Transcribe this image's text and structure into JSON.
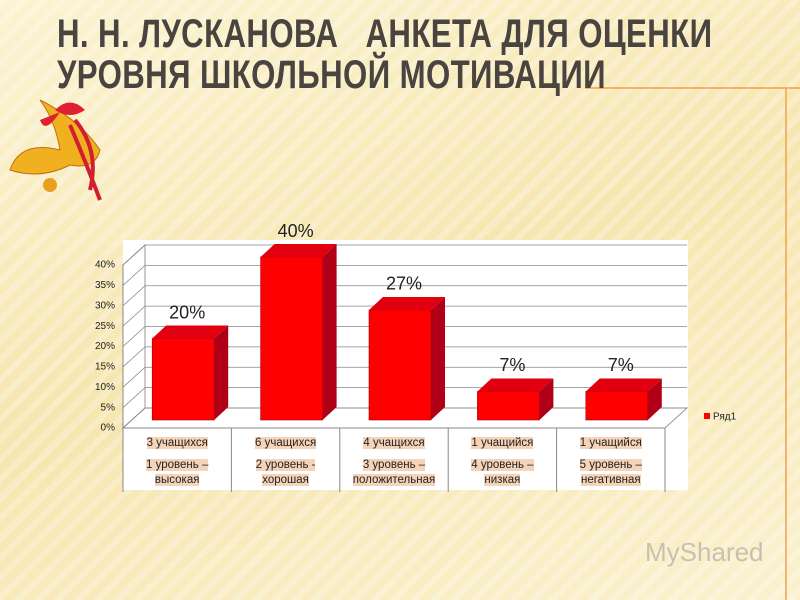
{
  "title": "Н. Н. ЛУСКАНОВА   АНКЕТА ДЛЯ ОЦЕНКИ УРОВНЯ ШКОЛЬНОЙ МОТИВАЦИИ",
  "watermark": "MyShared",
  "chart_data": {
    "type": "bar",
    "categories": [
      "3 учащихся",
      "6 учащихся",
      "4 учащихся",
      "1 учащийся",
      "1 учащийся"
    ],
    "category_groups": [
      "1 уровень – высокая",
      "2 уровень - хорошая",
      "3 уровень – положительная",
      "4 уровень – низкая",
      "5 уровень – негативная"
    ],
    "series": [
      {
        "name": "Ряд1",
        "color": "#ff0000",
        "values": [
          20,
          40,
          27,
          7,
          7
        ],
        "value_labels": [
          "20%",
          "40%",
          "27%",
          "7%",
          "7%"
        ]
      }
    ],
    "ylim": [
      0,
      40
    ],
    "yticks": [
      {
        "value": 0,
        "label": "0%"
      },
      {
        "value": 5,
        "label": "5%"
      },
      {
        "value": 10,
        "label": "10%"
      },
      {
        "value": 15,
        "label": "15%"
      },
      {
        "value": 20,
        "label": "20%"
      },
      {
        "value": 25,
        "label": "25%"
      },
      {
        "value": 30,
        "label": "30%"
      },
      {
        "value": 35,
        "label": "35%"
      },
      {
        "value": 40,
        "label": "40%"
      }
    ],
    "grid": true,
    "legend": "right"
  }
}
